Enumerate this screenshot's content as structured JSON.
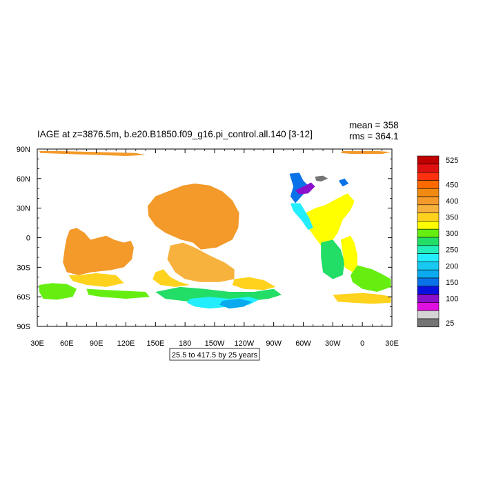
{
  "chart_data": {
    "type": "heatmap",
    "title": "IAGE at z=3876.5m, b.e20.B1850.f09_g16.pi_control.all.140 [3-12]",
    "stats": {
      "mean": "mean = 358",
      "rms": "rms = 364.1"
    },
    "contour_info": "25.5 to 417.5 by 25 years",
    "x_ticks": [
      "30E",
      "60E",
      "90E",
      "120E",
      "150E",
      "180",
      "150W",
      "120W",
      "90W",
      "60W",
      "30W",
      "0",
      "30E"
    ],
    "y_ticks": [
      "90N",
      "60N",
      "30N",
      "0",
      "30S",
      "60S",
      "90S"
    ],
    "xlim": [
      30,
      390
    ],
    "ylim": [
      -90,
      90
    ],
    "colorbar": {
      "levels": [
        525,
        500,
        475,
        450,
        425,
        400,
        375,
        350,
        325,
        300,
        275,
        250,
        225,
        200,
        175,
        150,
        125,
        100,
        75,
        50,
        25
      ],
      "labels": [
        "525",
        "450",
        "400",
        "350",
        "300",
        "250",
        "200",
        "150",
        "100",
        "25"
      ],
      "colors": [
        "#c00000",
        "#e01010",
        "#ff3010",
        "#ff6a00",
        "#f08a10",
        "#f39a2a",
        "#f7b23e",
        "#ffd21e",
        "#ffff00",
        "#66ee11",
        "#22dd66",
        "#22eebb",
        "#22eeff",
        "#18c8f0",
        "#0aaaee",
        "#0a72e8",
        "#0a10dd",
        "#8a10cc",
        "#e010e0",
        "#d4d4d4",
        "#747474"
      ]
    },
    "regions": [
      {
        "name": "arctic-strip-west",
        "value": 410,
        "poly": [
          [
            32,
            88
          ],
          [
            50,
            88
          ],
          [
            90,
            87
          ],
          [
            130,
            86
          ],
          [
            140,
            84
          ],
          [
            120,
            83
          ],
          [
            60,
            85
          ],
          [
            33,
            86
          ]
        ]
      },
      {
        "name": "arctic-strip-east",
        "value": 410,
        "poly": [
          [
            340,
            88
          ],
          [
            375,
            88
          ],
          [
            389,
            87
          ],
          [
            380,
            85
          ],
          [
            350,
            85
          ],
          [
            338,
            86
          ]
        ]
      },
      {
        "name": "pacific-main",
        "value": 405,
        "poly": [
          [
            142,
            32
          ],
          [
            150,
            42
          ],
          [
            165,
            48
          ],
          [
            178,
            53
          ],
          [
            190,
            55
          ],
          [
            205,
            53
          ],
          [
            218,
            47
          ],
          [
            228,
            38
          ],
          [
            235,
            25
          ],
          [
            234,
            10
          ],
          [
            228,
            -2
          ],
          [
            212,
            -10
          ],
          [
            196,
            -12
          ],
          [
            188,
            -5
          ],
          [
            176,
            -2
          ],
          [
            160,
            5
          ],
          [
            150,
            12
          ],
          [
            143,
            22
          ]
        ]
      },
      {
        "name": "indian-ocean",
        "value": 405,
        "poly": [
          [
            60,
            0
          ],
          [
            63,
            8
          ],
          [
            70,
            10
          ],
          [
            78,
            5
          ],
          [
            84,
            -2
          ],
          [
            92,
            0
          ],
          [
            100,
            2
          ],
          [
            108,
            -2
          ],
          [
            118,
            -5
          ],
          [
            125,
            -3
          ],
          [
            128,
            -10
          ],
          [
            126,
            -22
          ],
          [
            118,
            -30
          ],
          [
            104,
            -33
          ],
          [
            85,
            -35
          ],
          [
            72,
            -38
          ],
          [
            60,
            -35
          ],
          [
            56,
            -25
          ],
          [
            58,
            -10
          ]
        ]
      },
      {
        "name": "south-pacific-light",
        "value": 382,
        "poly": [
          [
            165,
            -8
          ],
          [
            178,
            -5
          ],
          [
            190,
            -10
          ],
          [
            205,
            -18
          ],
          [
            220,
            -25
          ],
          [
            230,
            -32
          ],
          [
            230,
            -42
          ],
          [
            215,
            -45
          ],
          [
            195,
            -45
          ],
          [
            180,
            -42
          ],
          [
            170,
            -35
          ],
          [
            162,
            -22
          ]
        ]
      },
      {
        "name": "indian-south-yellow",
        "value": 360,
        "poly": [
          [
            62,
            -38
          ],
          [
            72,
            -38
          ],
          [
            90,
            -36
          ],
          [
            110,
            -38
          ],
          [
            118,
            -46
          ],
          [
            100,
            -50
          ],
          [
            80,
            -48
          ],
          [
            66,
            -44
          ]
        ]
      },
      {
        "name": "tasman-yellow",
        "value": 360,
        "poly": [
          [
            150,
            -35
          ],
          [
            158,
            -32
          ],
          [
            165,
            -40
          ],
          [
            175,
            -45
          ],
          [
            185,
            -48
          ],
          [
            170,
            -50
          ],
          [
            155,
            -48
          ],
          [
            147,
            -42
          ]
        ]
      },
      {
        "name": "south-pacific-yellow",
        "value": 365,
        "poly": [
          [
            230,
            -42
          ],
          [
            245,
            -40
          ],
          [
            260,
            -43
          ],
          [
            272,
            -50
          ],
          [
            260,
            -53
          ],
          [
            240,
            -52
          ],
          [
            228,
            -48
          ]
        ]
      },
      {
        "name": "southern-ocean-west",
        "value": 312,
        "poly": [
          [
            32,
            -48
          ],
          [
            45,
            -46
          ],
          [
            60,
            -47
          ],
          [
            70,
            -52
          ],
          [
            66,
            -60
          ],
          [
            50,
            -63
          ],
          [
            36,
            -62
          ],
          [
            32,
            -55
          ]
        ]
      },
      {
        "name": "southern-ocean-mid",
        "value": 312,
        "poly": [
          [
            80,
            -52
          ],
          [
            100,
            -53
          ],
          [
            120,
            -54
          ],
          [
            140,
            -55
          ],
          [
            144,
            -60
          ],
          [
            120,
            -62
          ],
          [
            95,
            -60
          ],
          [
            82,
            -58
          ]
        ]
      },
      {
        "name": "ross-green",
        "value": 290,
        "poly": [
          [
            150,
            -55
          ],
          [
            175,
            -50
          ],
          [
            200,
            -52
          ],
          [
            225,
            -55
          ],
          [
            250,
            -55
          ],
          [
            270,
            -52
          ],
          [
            278,
            -58
          ],
          [
            265,
            -62
          ],
          [
            240,
            -65
          ],
          [
            210,
            -66
          ],
          [
            185,
            -65
          ],
          [
            160,
            -62
          ]
        ]
      },
      {
        "name": "ross-cyan",
        "value": 230,
        "poly": [
          [
            185,
            -62
          ],
          [
            205,
            -60
          ],
          [
            225,
            -62
          ],
          [
            245,
            -60
          ],
          [
            255,
            -63
          ],
          [
            245,
            -68
          ],
          [
            225,
            -70
          ],
          [
            205,
            -72
          ],
          [
            190,
            -70
          ],
          [
            182,
            -66
          ]
        ]
      },
      {
        "name": "ross-blue",
        "value": 195,
        "poly": [
          [
            218,
            -64
          ],
          [
            235,
            -62
          ],
          [
            248,
            -65
          ],
          [
            240,
            -70
          ],
          [
            225,
            -72
          ],
          [
            215,
            -68
          ]
        ]
      },
      {
        "name": "n-atlantic-yellow",
        "value": 338,
        "poly": [
          [
            302,
            25
          ],
          [
            312,
            30
          ],
          [
            322,
            33
          ],
          [
            335,
            40
          ],
          [
            345,
            45
          ],
          [
            352,
            37
          ],
          [
            348,
            28
          ],
          [
            340,
            18
          ],
          [
            335,
            5
          ],
          [
            328,
            -5
          ],
          [
            318,
            -8
          ],
          [
            312,
            0
          ],
          [
            305,
            10
          ],
          [
            298,
            18
          ]
        ]
      },
      {
        "name": "atlantic-green-column",
        "value": 290,
        "poly": [
          [
            318,
            -5
          ],
          [
            330,
            -2
          ],
          [
            338,
            -12
          ],
          [
            342,
            -25
          ],
          [
            340,
            -38
          ],
          [
            330,
            -42
          ],
          [
            320,
            -35
          ],
          [
            318,
            -20
          ]
        ]
      },
      {
        "name": "s-atlantic-yellow",
        "value": 345,
        "poly": [
          [
            338,
            -2
          ],
          [
            348,
            2
          ],
          [
            352,
            -5
          ],
          [
            355,
            -18
          ],
          [
            355,
            -28
          ],
          [
            350,
            -35
          ],
          [
            342,
            -30
          ],
          [
            340,
            -15
          ]
        ]
      },
      {
        "name": "se-atlantic-green",
        "value": 300,
        "poly": [
          [
            355,
            -28
          ],
          [
            370,
            -32
          ],
          [
            380,
            -37
          ],
          [
            389,
            -42
          ],
          [
            389,
            -50
          ],
          [
            375,
            -55
          ],
          [
            360,
            -52
          ],
          [
            350,
            -45
          ],
          [
            348,
            -38
          ]
        ]
      },
      {
        "name": "weddell-yellow",
        "value": 355,
        "poly": [
          [
            330,
            -58
          ],
          [
            345,
            -57
          ],
          [
            360,
            -56
          ],
          [
            380,
            -58
          ],
          [
            389,
            -60
          ],
          [
            389,
            -66
          ],
          [
            370,
            -67
          ],
          [
            350,
            -66
          ],
          [
            335,
            -65
          ]
        ]
      },
      {
        "name": "nw-atlantic-blue",
        "value": 170,
        "poly": [
          [
            292,
            35
          ],
          [
            300,
            44
          ],
          [
            306,
            52
          ],
          [
            300,
            58
          ],
          [
            296,
            66
          ],
          [
            286,
            65
          ],
          [
            290,
            52
          ],
          [
            287,
            42
          ]
        ]
      },
      {
        "name": "labrador-cyan",
        "value": 225,
        "poly": [
          [
            287,
            35
          ],
          [
            297,
            35
          ],
          [
            306,
            20
          ],
          [
            310,
            10
          ],
          [
            305,
            8
          ],
          [
            298,
            18
          ],
          [
            290,
            27
          ]
        ]
      },
      {
        "name": "labrador-magenta",
        "value": 105,
        "poly": [
          [
            292,
            48
          ],
          [
            300,
            52
          ],
          [
            308,
            56
          ],
          [
            312,
            52
          ],
          [
            305,
            45
          ],
          [
            296,
            44
          ]
        ]
      },
      {
        "name": "nordic-gray",
        "value": 30,
        "poly": [
          [
            312,
            62
          ],
          [
            320,
            63
          ],
          [
            325,
            60
          ],
          [
            318,
            57
          ],
          [
            313,
            58
          ]
        ]
      },
      {
        "name": "greenland-blue",
        "value": 160,
        "poly": [
          [
            336,
            58
          ],
          [
            342,
            60
          ],
          [
            346,
            55
          ],
          [
            340,
            52
          ]
        ]
      }
    ]
  }
}
